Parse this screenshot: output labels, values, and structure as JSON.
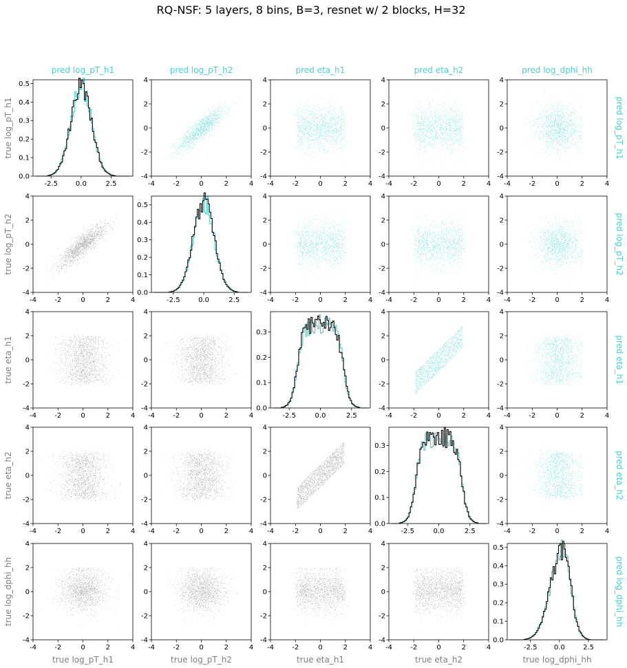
{
  "figure": {
    "title": "RQ-NSF: 5 layers, 8 bins, B=3, resnet w/ 2 blocks, H=32",
    "colors": {
      "pred": "#48d1cc",
      "true": "#808080",
      "hist_true": "#000000",
      "label_gray": "#808080"
    }
  },
  "chart_data": {
    "type": "scatter",
    "variables": [
      "log_pT_h1",
      "log_pT_h2",
      "eta_h1",
      "eta_h2",
      "log_dphi_hh"
    ],
    "top_labels": [
      "pred log_pT_h1",
      "pred log_pT_h2",
      "pred eta_h1",
      "pred eta_h2",
      "pred log_dphi_hh"
    ],
    "right_labels": [
      "pred log_pT_h1",
      "pred log_pT_h2",
      "pred eta_h1",
      "pred eta_h2",
      "pred log_dphi_hh"
    ],
    "left_labels": [
      "true log_pT_h1",
      "true log_pT_h2",
      "true eta_h1",
      "true eta_h2",
      "true log_dphi_hh"
    ],
    "bottom_labels": [
      "true log_pT_h1",
      "true log_pT_h2",
      "true eta_h1",
      "true eta_h2",
      "true log_dphi_hh"
    ],
    "scatter_lim": [
      -4,
      4
    ],
    "scatter_ticks": [
      -4,
      -2,
      0,
      2,
      4
    ],
    "upper_triangle_series": "pred",
    "lower_triangle_series": "true",
    "diagonal": [
      {
        "var": "log_pT_h1",
        "xlim": [
          -4.0,
          4.3
        ],
        "ylim": [
          0,
          0.52
        ],
        "xticks": [
          "-2.5",
          "0.0",
          "2.5"
        ],
        "yticks": [
          "0.0",
          "0.1",
          "0.2",
          "0.3",
          "0.4",
          "0.5"
        ],
        "shape": "normal",
        "peak": 0.49
      },
      {
        "var": "log_pT_h2",
        "xlim": [
          -4.3,
          3.9
        ],
        "ylim": [
          0,
          0.55
        ],
        "xticks": [
          "-2.5",
          "0.0",
          "2.5"
        ],
        "yticks": [
          "0.0",
          "0.1",
          "0.2",
          "0.3",
          "0.4",
          "0.5"
        ],
        "shape": "normal",
        "peak": 0.52
      },
      {
        "var": "eta_h1",
        "xlim": [
          -4.0,
          4.0
        ],
        "ylim": [
          0,
          0.38
        ],
        "xticks": [
          "-2.5",
          "0.0",
          "2.5"
        ],
        "yticks": [
          "0.0",
          "0.1",
          "0.2",
          "0.3"
        ],
        "shape": "flat",
        "peak": 0.33
      },
      {
        "var": "eta_h2",
        "xlim": [
          -4.0,
          4.0
        ],
        "ylim": [
          0,
          0.37
        ],
        "xticks": [
          "-2.5",
          "0.0",
          "2.5"
        ],
        "yticks": [
          "0.0",
          "0.1",
          "0.2",
          "0.3"
        ],
        "shape": "flat",
        "peak": 0.33
      },
      {
        "var": "log_dphi_hh",
        "xlim": [
          -4.5,
          4.1
        ],
        "ylim": [
          0,
          0.52
        ],
        "xticks": [
          "-2.5",
          "0.0",
          "2.5"
        ],
        "yticks": [
          "0.0",
          "0.1",
          "0.2",
          "0.3",
          "0.4",
          "0.5"
        ],
        "shape": "skew",
        "peak": 0.49
      }
    ],
    "correlation": {
      "log_pT_h1|log_pT_h2": "strong_positive_curved",
      "eta_h1|eta_h2": "band_positive",
      "default": "uncorrelated"
    }
  }
}
